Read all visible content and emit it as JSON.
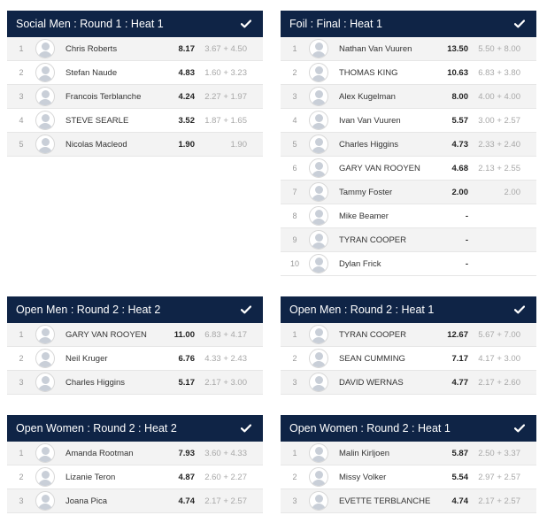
{
  "heats": [
    {
      "title": "Social Men : Round 1 : Heat 1",
      "rows": [
        {
          "rank": "1",
          "name": "Chris Roberts",
          "total": "8.17",
          "scores": "3.67 + 4.50"
        },
        {
          "rank": "2",
          "name": "Stefan Naude",
          "total": "4.83",
          "scores": "1.60 + 3.23"
        },
        {
          "rank": "3",
          "name": "Francois Terblanche",
          "total": "4.24",
          "scores": "2.27 + 1.97"
        },
        {
          "rank": "4",
          "name": "STEVE SEARLE",
          "total": "3.52",
          "scores": "1.87 + 1.65"
        },
        {
          "rank": "5",
          "name": "Nicolas Macleod",
          "total": "1.90",
          "scores": "1.90"
        }
      ]
    },
    {
      "title": "Foil : Final : Heat 1",
      "rows": [
        {
          "rank": "1",
          "name": "Nathan Van Vuuren",
          "total": "13.50",
          "scores": "5.50 + 8.00"
        },
        {
          "rank": "2",
          "name": "THOMAS KING",
          "total": "10.63",
          "scores": "6.83 + 3.80"
        },
        {
          "rank": "3",
          "name": "Alex Kugelman",
          "total": "8.00",
          "scores": "4.00 + 4.00"
        },
        {
          "rank": "4",
          "name": "Ivan Van Vuuren",
          "total": "5.57",
          "scores": "3.00 + 2.57"
        },
        {
          "rank": "5",
          "name": "Charles Higgins",
          "total": "4.73",
          "scores": "2.33 + 2.40"
        },
        {
          "rank": "6",
          "name": "GARY VAN ROOYEN",
          "total": "4.68",
          "scores": "2.13 + 2.55"
        },
        {
          "rank": "7",
          "name": "Tammy Foster",
          "total": "2.00",
          "scores": "2.00"
        },
        {
          "rank": "8",
          "name": "Mike Beamer",
          "total": "-",
          "scores": ""
        },
        {
          "rank": "9",
          "name": "TYRAN COOPER",
          "total": "-",
          "scores": ""
        },
        {
          "rank": "10",
          "name": "Dylan Frick",
          "total": "-",
          "scores": ""
        }
      ]
    },
    {
      "title": "Open Men : Round 2 : Heat 2",
      "rows": [
        {
          "rank": "1",
          "name": "GARY VAN ROOYEN",
          "total": "11.00",
          "scores": "6.83 + 4.17"
        },
        {
          "rank": "2",
          "name": "Neil Kruger",
          "total": "6.76",
          "scores": "4.33 + 2.43"
        },
        {
          "rank": "3",
          "name": "Charles Higgins",
          "total": "5.17",
          "scores": "2.17 + 3.00"
        }
      ]
    },
    {
      "title": "Open Men : Round 2 : Heat 1",
      "rows": [
        {
          "rank": "1",
          "name": "TYRAN COOPER",
          "total": "12.67",
          "scores": "5.67 + 7.00"
        },
        {
          "rank": "2",
          "name": "SEAN CUMMING",
          "total": "7.17",
          "scores": "4.17 + 3.00"
        },
        {
          "rank": "3",
          "name": "DAVID WERNAS",
          "total": "4.77",
          "scores": "2.17 + 2.60"
        }
      ]
    },
    {
      "title": "Open Women : Round 2 : Heat 2",
      "rows": [
        {
          "rank": "1",
          "name": "Amanda Rootman",
          "total": "7.93",
          "scores": "3.60 + 4.33"
        },
        {
          "rank": "2",
          "name": "Lizanie Teron",
          "total": "4.87",
          "scores": "2.60 + 2.27"
        },
        {
          "rank": "3",
          "name": "Joana Pica",
          "total": "4.74",
          "scores": "2.17 + 2.57"
        }
      ]
    },
    {
      "title": "Open Women : Round 2 : Heat 1",
      "rows": [
        {
          "rank": "1",
          "name": "Malin Kirljoen",
          "total": "5.87",
          "scores": "2.50 + 3.37"
        },
        {
          "rank": "2",
          "name": "Missy Volker",
          "total": "5.54",
          "scores": "2.97 + 2.57"
        },
        {
          "rank": "3",
          "name": "EVETTE TERBLANCHE",
          "total": "4.74",
          "scores": "2.17 + 2.57"
        }
      ]
    }
  ],
  "icons": {
    "header_status": "check-icon"
  },
  "colors": {
    "header_bg": "#0f2446",
    "row_alt_bg": "#f3f3f3"
  }
}
